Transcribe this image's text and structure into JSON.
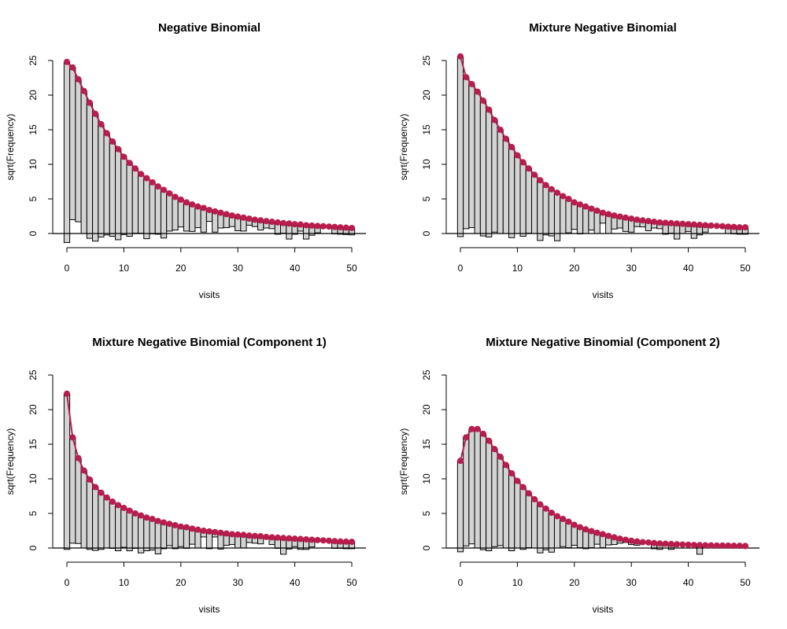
{
  "colors": {
    "expected": "#b81d4e",
    "bar_fill": "#d3d3d3",
    "bar_stroke": "#000000"
  },
  "chart_data": [
    {
      "type": "bar",
      "subtype": "hanging rootogram",
      "title": "Negative Binomial",
      "xlabel": "visits",
      "ylabel": "sqrt(Frequency)",
      "xlim": [
        0,
        50
      ],
      "ylim": [
        -1.3,
        25
      ],
      "xticks": [
        0,
        10,
        20,
        30,
        40,
        50
      ],
      "yticks": [
        0,
        5,
        10,
        15,
        20,
        25
      ],
      "x": [
        0,
        1,
        2,
        3,
        4,
        5,
        6,
        7,
        8,
        9,
        10,
        11,
        12,
        13,
        14,
        15,
        16,
        17,
        18,
        19,
        20,
        21,
        22,
        23,
        24,
        25,
        26,
        27,
        28,
        29,
        30,
        31,
        32,
        33,
        34,
        35,
        36,
        37,
        38,
        39,
        40,
        41,
        42,
        43,
        44,
        45,
        46,
        47,
        48,
        49,
        50
      ],
      "expected_sqrt": [
        24.8,
        24.0,
        22.3,
        20.6,
        18.9,
        17.3,
        15.8,
        14.5,
        13.3,
        12.2,
        11.1,
        10.2,
        9.4,
        8.6,
        8.0,
        7.4,
        6.8,
        6.3,
        5.8,
        5.3,
        4.9,
        4.5,
        4.2,
        3.9,
        3.7,
        3.4,
        3.2,
        3.0,
        2.8,
        2.6,
        2.45,
        2.3,
        2.15,
        2.0,
        1.9,
        1.8,
        1.7,
        1.6,
        1.5,
        1.45,
        1.35,
        1.3,
        1.2,
        1.15,
        1.1,
        1.05,
        1.0,
        0.95,
        0.9,
        0.85,
        0.8
      ],
      "bar_bottom": [
        -1.3,
        2.0,
        1.7,
        0,
        -0.7,
        -1.1,
        -0.5,
        -0.2,
        -0.4,
        -0.9,
        -0.15,
        -0.4,
        0.05,
        0.05,
        -0.75,
        -0.05,
        -0.1,
        -0.65,
        0.35,
        0.5,
        0.95,
        0.35,
        0.3,
        0.85,
        0.2,
        1.75,
        0.2,
        0.8,
        0.85,
        1.0,
        0.4,
        0.35,
        1.2,
        1.0,
        0.5,
        0.8,
        0.7,
        -0.1,
        0.05,
        -0.8,
        -0.1,
        0.35,
        -0.8,
        -0.25,
        0.1,
        1.05,
        1.0,
        -0.05,
        -0.1,
        -0.15,
        -0.2
      ]
    },
    {
      "type": "bar",
      "subtype": "hanging rootogram",
      "title": "Mixture Negative Binomial",
      "xlabel": "visits",
      "ylabel": "sqrt(Frequency)",
      "xlim": [
        0,
        50
      ],
      "ylim": [
        -1.3,
        25
      ],
      "xticks": [
        0,
        10,
        20,
        30,
        40,
        50
      ],
      "yticks": [
        0,
        5,
        10,
        15,
        20,
        25
      ],
      "x": [
        0,
        1,
        2,
        3,
        4,
        5,
        6,
        7,
        8,
        9,
        10,
        11,
        12,
        13,
        14,
        15,
        16,
        17,
        18,
        19,
        20,
        21,
        22,
        23,
        24,
        25,
        26,
        27,
        28,
        29,
        30,
        31,
        32,
        33,
        34,
        35,
        36,
        37,
        38,
        39,
        40,
        41,
        42,
        43,
        44,
        45,
        46,
        47,
        48,
        49,
        50
      ],
      "expected_sqrt": [
        25.6,
        22.6,
        21.6,
        20.5,
        19.2,
        17.9,
        16.4,
        15.0,
        13.7,
        12.5,
        11.3,
        10.3,
        9.4,
        8.5,
        7.7,
        7.0,
        6.4,
        5.9,
        5.4,
        5.0,
        4.5,
        4.2,
        3.9,
        3.6,
        3.3,
        3.0,
        2.8,
        2.6,
        2.45,
        2.3,
        2.15,
        2.0,
        1.9,
        1.8,
        1.7,
        1.6,
        1.55,
        1.5,
        1.45,
        1.4,
        1.35,
        1.3,
        1.25,
        1.2,
        1.15,
        1.1,
        1.05,
        1.0,
        0.95,
        0.9,
        0.9
      ],
      "bar_bottom": [
        -0.45,
        0.7,
        0.85,
        0,
        -0.35,
        -0.5,
        0.2,
        0,
        0,
        -0.6,
        0,
        -0.4,
        0.05,
        0,
        -1.0,
        -0.2,
        -0.35,
        -1.05,
        0,
        0.1,
        0.6,
        -0.05,
        0,
        0.5,
        0,
        1.5,
        0,
        0.65,
        0.8,
        0.3,
        0.2,
        1.0,
        0.95,
        0.4,
        0.8,
        0.7,
        -0.1,
        0.05,
        -0.8,
        0,
        0.3,
        -0.7,
        -0.2,
        0.2,
        1.15,
        1.1,
        1.05,
        0,
        -0.05,
        -0.1,
        -0.1
      ]
    },
    {
      "type": "bar",
      "subtype": "hanging rootogram",
      "title": "Mixture Negative Binomial (Component 1)",
      "xlabel": "visits",
      "ylabel": "sqrt(Frequency)",
      "xlim": [
        0,
        50
      ],
      "ylim": [
        -1.3,
        25
      ],
      "xticks": [
        0,
        10,
        20,
        30,
        40,
        50
      ],
      "yticks": [
        0,
        5,
        10,
        15,
        20,
        25
      ],
      "x": [
        0,
        1,
        2,
        3,
        4,
        5,
        6,
        7,
        8,
        9,
        10,
        11,
        12,
        13,
        14,
        15,
        16,
        17,
        18,
        19,
        20,
        21,
        22,
        23,
        24,
        25,
        26,
        27,
        28,
        29,
        30,
        31,
        32,
        33,
        34,
        35,
        36,
        37,
        38,
        39,
        40,
        41,
        42,
        43,
        44,
        45,
        46,
        47,
        48,
        49,
        50
      ],
      "expected_sqrt": [
        22.3,
        16.0,
        13.0,
        11.2,
        9.9,
        8.8,
        8.0,
        7.3,
        6.7,
        6.2,
        5.8,
        5.4,
        5.0,
        4.7,
        4.4,
        4.2,
        3.9,
        3.7,
        3.5,
        3.3,
        3.1,
        3.0,
        2.8,
        2.65,
        2.5,
        2.4,
        2.3,
        2.2,
        2.1,
        2.0,
        1.95,
        1.9,
        1.8,
        1.75,
        1.7,
        1.6,
        1.55,
        1.5,
        1.45,
        1.4,
        1.35,
        1.3,
        1.25,
        1.2,
        1.15,
        1.1,
        1.05,
        1.0,
        0.95,
        0.92,
        0.9
      ],
      "bar_bottom": [
        -0.2,
        0.7,
        0.65,
        0,
        -0.2,
        -0.35,
        -0.2,
        0,
        -0.05,
        -0.4,
        0.1,
        -0.4,
        -0.05,
        -0.7,
        -0.4,
        -0.3,
        -0.85,
        -0.1,
        0.35,
        -0.1,
        0.2,
        -0.05,
        0.55,
        0,
        1.6,
        -0.1,
        1.6,
        -0.15,
        0.4,
        0.5,
        0,
        0,
        0.8,
        0.7,
        0.6,
        1.6,
        0.5,
        -0.05,
        -0.9,
        -0.15,
        0.2,
        -0.2,
        -0.2,
        0.15,
        1.15,
        1.1,
        1.05,
        -0.05,
        -0.05,
        -0.1,
        -0.1
      ]
    },
    {
      "type": "bar",
      "subtype": "hanging rootogram",
      "title": "Mixture Negative Binomial (Component 2)",
      "xlabel": "visits",
      "ylabel": "sqrt(Frequency)",
      "xlim": [
        0,
        50
      ],
      "ylim": [
        -1.3,
        25
      ],
      "xticks": [
        0,
        10,
        20,
        30,
        40,
        50
      ],
      "yticks": [
        0,
        5,
        10,
        15,
        20,
        25
      ],
      "x": [
        0,
        1,
        2,
        3,
        4,
        5,
        6,
        7,
        8,
        9,
        10,
        11,
        12,
        13,
        14,
        15,
        16,
        17,
        18,
        19,
        20,
        21,
        22,
        23,
        24,
        25,
        26,
        27,
        28,
        29,
        30,
        31,
        32,
        33,
        34,
        35,
        36,
        37,
        38,
        39,
        40,
        41,
        42,
        43,
        44,
        45,
        46,
        47,
        48,
        49,
        50
      ],
      "expected_sqrt": [
        12.6,
        16.0,
        17.2,
        17.2,
        16.5,
        15.5,
        14.3,
        13.2,
        12.0,
        10.8,
        9.7,
        8.8,
        7.9,
        7.05,
        6.3,
        5.7,
        5.1,
        4.6,
        4.2,
        3.8,
        3.35,
        3.0,
        2.7,
        2.45,
        2.2,
        2.0,
        1.75,
        1.55,
        1.35,
        1.2,
        1.05,
        0.95,
        0.85,
        0.8,
        0.72,
        0.66,
        0.62,
        0.58,
        0.54,
        0.5,
        0.47,
        0.44,
        0.42,
        0.4,
        0.38,
        0.36,
        0.35,
        0.34,
        0.33,
        0.32,
        0.3
      ],
      "bar_bottom": [
        -0.55,
        0.3,
        0.6,
        0,
        -0.25,
        -0.4,
        0.2,
        0.35,
        0,
        -0.4,
        0,
        -0.2,
        0.05,
        0,
        -0.7,
        -0.25,
        -0.6,
        0,
        0.2,
        0.05,
        0.4,
        0.05,
        -0.1,
        0.05,
        0.55,
        0.05,
        0.45,
        0.5,
        0.7,
        0.8,
        0.5,
        0.4,
        0.85,
        0.8,
        -0.1,
        -0.2,
        0.62,
        -0.2,
        0.54,
        0.5,
        0.47,
        0.44,
        -0.9,
        0.4,
        0.38,
        0.36,
        0.35,
        0.34,
        0.33,
        0.32,
        0.3
      ]
    }
  ]
}
